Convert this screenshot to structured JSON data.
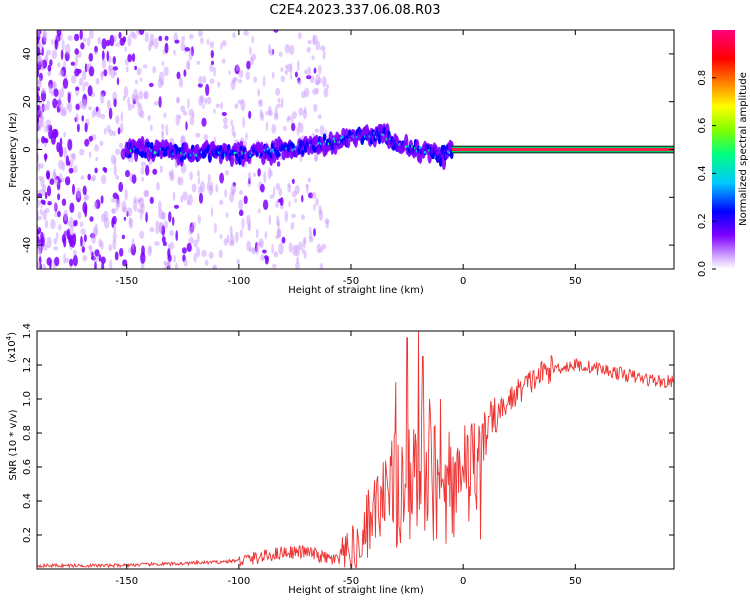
{
  "title": "C2E4.2023.337.06.08.R03",
  "chart_data": [
    {
      "type": "heatmap",
      "xlabel": "Height of straight line (km)",
      "ylabel": "Frequency (Hz)",
      "xlim": [
        -190,
        94
      ],
      "ylim": [
        -50,
        50
      ],
      "xticks": [
        -150,
        -100,
        -50,
        0,
        50
      ],
      "yticks": [
        -40,
        -20,
        0,
        20,
        40
      ],
      "colorbar": {
        "label": "Normalized spectral amplitude",
        "range": [
          0.0,
          1.0
        ],
        "ticks": [
          0.0,
          0.2,
          0.4,
          0.6,
          0.8
        ],
        "colormap": [
          "#ffffff",
          "#cc99ff",
          "#7f00ff",
          "#0000ff",
          "#00c8ff",
          "#00ff7f",
          "#7fff00",
          "#ffff00",
          "#ff7f00",
          "#ff0000",
          "#ff007f"
        ]
      },
      "ridge": {
        "x": [
          -150,
          -140,
          -130,
          -120,
          -110,
          -100,
          -90,
          -80,
          -70,
          -60,
          -50,
          -45,
          -40,
          -35,
          -30,
          -25,
          -20,
          -15,
          -10,
          -5,
          0,
          20,
          40,
          60,
          80,
          94
        ],
        "y": [
          0,
          0,
          -1,
          -2,
          -1,
          -2,
          -1,
          0,
          1,
          3,
          5,
          6,
          6,
          6,
          2,
          1,
          0,
          -1,
          -3,
          0,
          0,
          0,
          0,
          0,
          0,
          0
        ],
        "amplitude": [
          0.3,
          0.3,
          0.35,
          0.35,
          0.35,
          0.4,
          0.4,
          0.4,
          0.4,
          0.45,
          0.45,
          0.45,
          0.45,
          0.5,
          0.5,
          0.5,
          0.55,
          0.6,
          0.6,
          1.0,
          1.0,
          1.0,
          1.0,
          1.0,
          1.0,
          1.0
        ]
      },
      "background_noise_extent_x": [
        -190,
        -60
      ]
    },
    {
      "type": "line",
      "xlabel": "Height of straight line (km)",
      "ylabel": "SNR (10 * v/v)",
      "yscale_label": "(x10",
      "yscale_exp": "4",
      "xlim": [
        -190,
        94
      ],
      "ylim": [
        0,
        1.4
      ],
      "xticks": [
        -150,
        -100,
        -50,
        0,
        50
      ],
      "yticks": [
        0.2,
        0.4,
        0.6,
        0.8,
        1.0,
        1.2,
        1.4
      ],
      "color": "#ee3333",
      "series": [
        {
          "x": [
            -190,
            -160,
            -130,
            -110,
            -100,
            -90,
            -80,
            -70,
            -60,
            -55,
            -50,
            -45,
            -40,
            -35,
            -30,
            -25,
            -20,
            -15,
            -10,
            -5,
            0,
            5,
            10,
            15,
            20,
            25,
            30,
            35,
            40,
            50,
            60,
            70,
            80,
            90,
            94
          ],
          "y": [
            0.02,
            0.02,
            0.03,
            0.04,
            0.05,
            0.07,
            0.1,
            0.1,
            0.06,
            0.05,
            0.08,
            0.2,
            0.35,
            0.45,
            0.55,
            0.6,
            0.65,
            0.62,
            0.6,
            0.62,
            0.65,
            0.72,
            0.8,
            0.9,
            0.98,
            1.05,
            1.1,
            1.15,
            1.18,
            1.2,
            1.18,
            1.15,
            1.12,
            1.1,
            1.1
          ]
        }
      ],
      "spikes": [
        {
          "x": -25,
          "y": 1.36
        },
        {
          "x": -20,
          "y": 1.4
        },
        {
          "x": -18,
          "y": 1.25
        },
        {
          "x": -30,
          "y": 1.1
        },
        {
          "x": -15,
          "y": 1.0
        },
        {
          "x": -10,
          "y": 1.0
        }
      ]
    }
  ]
}
